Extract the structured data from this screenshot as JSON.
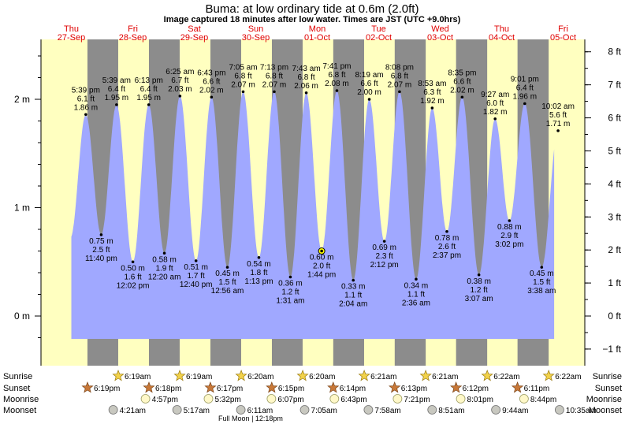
{
  "title": "Buma: at low  ordinary tide at 0.6m (2.0ft)",
  "subtitle": "Image captured 18 minutes after low water. Times are JST (UTC +9.0hrs)",
  "days": [
    {
      "dow": "Thu",
      "date": "27-Sep"
    },
    {
      "dow": "Fri",
      "date": "28-Sep"
    },
    {
      "dow": "Sat",
      "date": "29-Sep"
    },
    {
      "dow": "Sun",
      "date": "30-Sep"
    },
    {
      "dow": "Mon",
      "date": "01-Oct"
    },
    {
      "dow": "Tue",
      "date": "02-Oct"
    },
    {
      "dow": "Wed",
      "date": "03-Oct"
    },
    {
      "dow": "Thu",
      "date": "04-Oct"
    },
    {
      "dow": "Fri",
      "date": "05-Oct"
    }
  ],
  "colors": {
    "day_bg": "#ffffc0",
    "night_bg": "#8c8c8c",
    "water": "#a0a8ff",
    "date_text": "#e00000",
    "current_marker": "#ffff00"
  },
  "chart_data": {
    "type": "area",
    "x_unit": "hours since Thu 27-Sep 00:00 JST",
    "y_left": {
      "label": "m",
      "ticks": [
        "0 m",
        "1 m",
        "2 m"
      ],
      "range_m": [
        -0.37,
        2.53
      ]
    },
    "y_right": {
      "label": "ft",
      "ticks": [
        "−1 ft",
        "0 ft",
        "1 ft",
        "2 ft",
        "3 ft",
        "4 ft",
        "5 ft",
        "6 ft",
        "7 ft",
        "8 ft"
      ]
    },
    "current": {
      "label": "0.60 m\n2.0 ft\n1:44 pm",
      "height_m": 0.6
    },
    "extremes": [
      {
        "type": "high",
        "time": "5:39 pm",
        "ft": "6.1 ft",
        "m": "1.86 m",
        "hour": 17.65,
        "height": 1.86
      },
      {
        "type": "low",
        "time": "11:40 pm",
        "ft": "2.5 ft",
        "m": "0.75 m",
        "hour": 23.67,
        "height": 0.75
      },
      {
        "type": "high",
        "time": "5:39 am",
        "ft": "6.4 ft",
        "m": "1.95 m",
        "hour": 29.65,
        "height": 1.95
      },
      {
        "type": "low",
        "time": "12:02 pm",
        "ft": "1.6 ft",
        "m": "0.50 m",
        "hour": 36.03,
        "height": 0.5
      },
      {
        "type": "high",
        "time": "6:13 pm",
        "ft": "6.4 ft",
        "m": "1.95 m",
        "hour": 42.22,
        "height": 1.95
      },
      {
        "type": "low",
        "time": "12:20 am",
        "ft": "1.9 ft",
        "m": "0.58 m",
        "hour": 48.33,
        "height": 0.58
      },
      {
        "type": "high",
        "time": "6:25 am",
        "ft": "6.7 ft",
        "m": "2.03 m",
        "hour": 54.42,
        "height": 2.03
      },
      {
        "type": "low",
        "time": "12:40 pm",
        "ft": "1.7 ft",
        "m": "0.51 m",
        "hour": 60.67,
        "height": 0.51
      },
      {
        "type": "high",
        "time": "6:43 pm",
        "ft": "6.6 ft",
        "m": "2.02 m",
        "hour": 66.72,
        "height": 2.02
      },
      {
        "type": "low",
        "time": "12:56 am",
        "ft": "1.5 ft",
        "m": "0.45 m",
        "hour": 72.93,
        "height": 0.45
      },
      {
        "type": "high",
        "time": "7:05 am",
        "ft": "6.8 ft",
        "m": "2.07 m",
        "hour": 79.08,
        "height": 2.07
      },
      {
        "type": "low",
        "time": "1:13 pm",
        "ft": "1.8 ft",
        "m": "0.54 m",
        "hour": 85.22,
        "height": 0.54
      },
      {
        "type": "high",
        "time": "7:13 pm",
        "ft": "6.8 ft",
        "m": "2.07 m",
        "hour": 91.22,
        "height": 2.07
      },
      {
        "type": "low",
        "time": "1:31 am",
        "ft": "1.2 ft",
        "m": "0.36 m",
        "hour": 97.52,
        "height": 0.36
      },
      {
        "type": "high",
        "time": "7:43 am",
        "ft": "6.8 ft",
        "m": "2.06 m",
        "hour": 103.72,
        "height": 2.06
      },
      {
        "type": "low",
        "time": "1:44 pm",
        "ft": "2.0 ft",
        "m": "0.60 m",
        "hour": 109.73,
        "height": 0.6
      },
      {
        "type": "high",
        "time": "7:41 pm",
        "ft": "6.8 ft",
        "m": "2.08 m",
        "hour": 115.68,
        "height": 2.08
      },
      {
        "type": "low",
        "time": "2:04 am",
        "ft": "1.1 ft",
        "m": "0.33 m",
        "hour": 122.07,
        "height": 0.33
      },
      {
        "type": "high",
        "time": "8:19 am",
        "ft": "6.6 ft",
        "m": "2.00 m",
        "hour": 128.32,
        "height": 2.0
      },
      {
        "type": "low",
        "time": "2:12 pm",
        "ft": "2.3 ft",
        "m": "0.69 m",
        "hour": 134.2,
        "height": 0.69
      },
      {
        "type": "high",
        "time": "8:08 pm",
        "ft": "6.8 ft",
        "m": "2.07 m",
        "hour": 140.13,
        "height": 2.07
      },
      {
        "type": "low",
        "time": "2:36 am",
        "ft": "1.1 ft",
        "m": "0.34 m",
        "hour": 146.6,
        "height": 0.34
      },
      {
        "type": "high",
        "time": "8:53 am",
        "ft": "6.3 ft",
        "m": "1.92 m",
        "hour": 152.88,
        "height": 1.92
      },
      {
        "type": "low",
        "time": "2:37 pm",
        "ft": "2.6 ft",
        "m": "0.78 m",
        "hour": 158.62,
        "height": 0.78
      },
      {
        "type": "high",
        "time": "8:35 pm",
        "ft": "6.6 ft",
        "m": "2.02 m",
        "hour": 164.58,
        "height": 2.02
      },
      {
        "type": "low",
        "time": "3:07 am",
        "ft": "1.2 ft",
        "m": "0.38 m",
        "hour": 171.12,
        "height": 0.38
      },
      {
        "type": "high",
        "time": "9:27 am",
        "ft": "6.0 ft",
        "m": "1.82 m",
        "hour": 177.45,
        "height": 1.82
      },
      {
        "type": "low",
        "time": "3:02 pm",
        "ft": "2.9 ft",
        "m": "0.88 m",
        "hour": 183.03,
        "height": 0.88
      },
      {
        "type": "high",
        "time": "9:01 pm",
        "ft": "6.4 ft",
        "m": "1.96 m",
        "hour": 189.02,
        "height": 1.96
      },
      {
        "type": "low",
        "time": "3:38 am",
        "ft": "1.5 ft",
        "m": "0.45 m",
        "hour": 195.63,
        "height": 0.45
      },
      {
        "type": "high",
        "time": "10:02 am",
        "ft": "5.6 ft",
        "m": "1.71 m",
        "hour": 202.03,
        "height": 1.71
      }
    ],
    "sunrise": [
      "6:19am",
      "6:19am",
      "6:20am",
      "6:20am",
      "6:21am",
      "6:21am",
      "6:22am",
      "6:22am"
    ],
    "sunset": [
      "6:19pm",
      "6:18pm",
      "6:17pm",
      "6:15pm",
      "6:14pm",
      "6:13pm",
      "6:12pm",
      "6:11pm"
    ],
    "moonrise": [
      "4:57pm",
      "5:32pm",
      "6:07pm",
      "6:43pm",
      "7:21pm",
      "8:01pm",
      "8:44pm"
    ],
    "moonset": [
      "4:21am",
      "5:17am",
      "6:11am",
      "7:05am",
      "7:58am",
      "8:51am",
      "9:44am",
      "10:35am"
    ],
    "moon_phase": "Full Moon | 12:18pm"
  },
  "row_labels": {
    "sunrise": "Sunrise",
    "sunset": "Sunset",
    "moonrise": "Moonrise",
    "moonset": "Moonset"
  }
}
